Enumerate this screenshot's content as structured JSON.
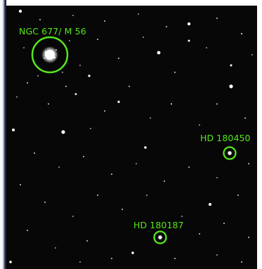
{
  "image": {
    "background_color": "#070707",
    "annotation_color": "#55e81c"
  },
  "annotations": [
    {
      "key": "m56",
      "label": "NGC 677/ M 56"
    },
    {
      "key": "hd450",
      "label": "HD 180450"
    },
    {
      "key": "hd187",
      "label": "HD 180187"
    }
  ]
}
